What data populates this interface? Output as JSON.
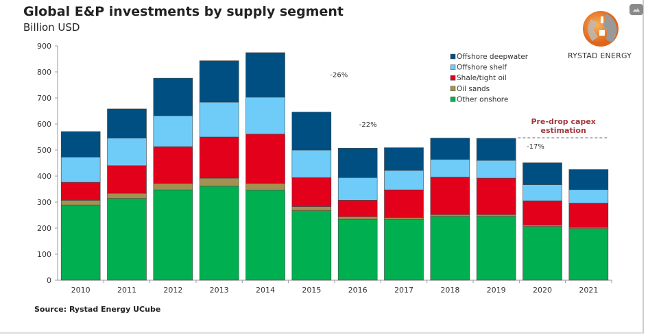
{
  "chart_data": {
    "type": "bar",
    "stacked": true,
    "title": "Global E&P investments by supply segment",
    "subtitle": "Billion USD",
    "xlabel": "",
    "ylabel": "Billion USD",
    "ylim": [
      0,
      900
    ],
    "yticks": [
      0,
      100,
      200,
      300,
      400,
      500,
      600,
      700,
      800,
      900
    ],
    "grid": false,
    "legend_position": "top-right",
    "categories": [
      "2010",
      "2011",
      "2012",
      "2013",
      "2014",
      "2015",
      "2016",
      "2017",
      "2018",
      "2019",
      "2020",
      "2021"
    ],
    "series": [
      {
        "name": "Other onshore",
        "color": "#00b050",
        "values": [
          289,
          314,
          347,
          361,
          346,
          267,
          234,
          234,
          245,
          245,
          206,
          198
        ]
      },
      {
        "name": "Oil sands",
        "color": "#a39151",
        "values": [
          18,
          20,
          25,
          31,
          26,
          16,
          10,
          7,
          7,
          7,
          6,
          5
        ]
      },
      {
        "name": "Shale/tight oil",
        "color": "#e2001a",
        "values": [
          69,
          106,
          141,
          158,
          189,
          111,
          63,
          106,
          144,
          140,
          93,
          93
        ]
      },
      {
        "name": "Offshore shelf",
        "color": "#6fcbf7",
        "values": [
          97,
          106,
          119,
          134,
          142,
          106,
          87,
          75,
          68,
          68,
          62,
          52
        ]
      },
      {
        "name": "Offshore deepwater",
        "color": "#004f82",
        "values": [
          98,
          112,
          144,
          159,
          171,
          146,
          113,
          87,
          82,
          85,
          84,
          77
        ]
      }
    ],
    "annotations": [
      {
        "text": "-26%",
        "x": "2015",
        "y": 780
      },
      {
        "text": "-22%",
        "x": "2016",
        "y": 590
      },
      {
        "text": "-17%",
        "x": "2020",
        "y": 505
      }
    ],
    "reference_line": {
      "label_line1": "Pre-drop capex",
      "label_line2": "estimation",
      "value": 547,
      "from": "2020",
      "to": "2021",
      "color": "#a0393c"
    }
  },
  "source": "Source: Rystad Energy UCube",
  "logo": {
    "text": "RYSTAD ENERGY",
    "color": "#f07d1e"
  },
  "icons": {
    "top_right": "image-icon"
  }
}
